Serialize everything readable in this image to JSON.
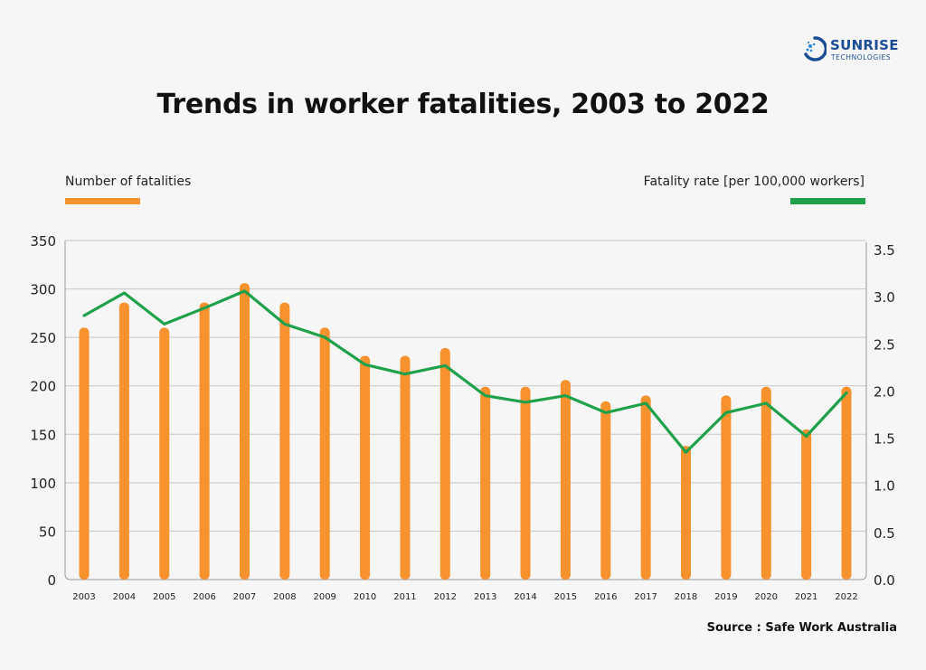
{
  "logo": {
    "name": "SUNRISE",
    "sub": "TECHNOLOGIES"
  },
  "legend": {
    "left": {
      "label": "Number of fatalities"
    },
    "right": {
      "label": "Fatality rate [per 100,000 workers]"
    }
  },
  "source": "Source : Safe Work Australia",
  "colors": {
    "bar": "#f7922e",
    "line": "#1fa14a",
    "grid": "#c7c7c7",
    "background": "#f6f6f6"
  },
  "chart_data": {
    "type": "bar+line",
    "title": "Trends in worker fatalities, 2003 to 2022",
    "categories": [
      "2003",
      "2004",
      "2005",
      "2006",
      "2007",
      "2008",
      "2009",
      "2010",
      "2011",
      "2012",
      "2013",
      "2014",
      "2015",
      "2016",
      "2017",
      "2018",
      "2019",
      "2020",
      "2021",
      "2022"
    ],
    "series": [
      {
        "name": "Number of fatalities",
        "type": "bar",
        "axis": "left",
        "values": [
          260,
          286,
          260,
          286,
          306,
          286,
          260,
          231,
          231,
          239,
          199,
          199,
          206,
          184,
          190,
          138,
          190,
          199,
          155,
          199
        ]
      },
      {
        "name": "Fatality rate [per 100,000 workers]",
        "type": "line",
        "axis": "right",
        "values": [
          2.8,
          3.04,
          2.71,
          2.88,
          3.06,
          2.71,
          2.57,
          2.28,
          2.18,
          2.27,
          1.95,
          1.88,
          1.95,
          1.77,
          1.87,
          1.35,
          1.77,
          1.87,
          1.52,
          1.98
        ]
      }
    ],
    "yleft": {
      "ticks": [
        0,
        50,
        100,
        150,
        200,
        250,
        300,
        350
      ],
      "ylim": [
        0,
        350
      ]
    },
    "yright": {
      "ticks": [
        "0.0",
        "0.5",
        "1.0",
        "1.5",
        "2.0",
        "2.5",
        "3.0",
        "3.5"
      ],
      "ylim": [
        0,
        3.5
      ]
    },
    "grid": true,
    "legend": "top"
  }
}
